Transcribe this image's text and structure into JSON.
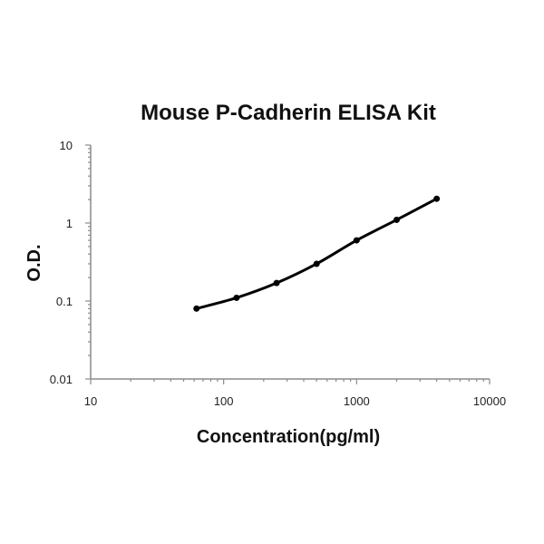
{
  "chart_data": {
    "type": "line",
    "title": "Mouse P-Cadherin ELISA Kit",
    "xlabel": "Concentration(pg/ml)",
    "ylabel": "O.D.",
    "xscale": "log",
    "yscale": "log",
    "xlim": [
      10,
      10000
    ],
    "ylim": [
      0.01,
      10
    ],
    "xticks": [
      "10",
      "100",
      "1000",
      "10000"
    ],
    "yticks": [
      "0.01",
      "0.1",
      "1",
      "10"
    ],
    "grid": false,
    "legend": "none",
    "series": [
      {
        "x": [
          62.5,
          125,
          250,
          500,
          1000,
          2000,
          4000
        ],
        "y": [
          0.08,
          0.11,
          0.17,
          0.3,
          0.6,
          1.1,
          2.05
        ],
        "color": "#000000"
      }
    ]
  }
}
